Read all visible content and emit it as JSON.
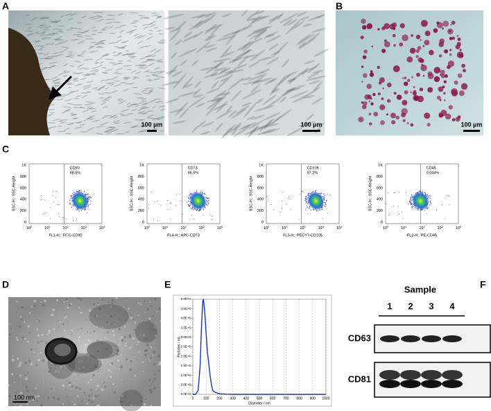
{
  "panels": {
    "A": {
      "label": "A",
      "scale_bars": [
        "100 µm",
        "100 µm"
      ]
    },
    "B": {
      "label": "B",
      "scale_bar": "100 µm"
    },
    "C": {
      "label": "C",
      "y_axis_label": "SSC-H:: SSC-Height",
      "y_ticks": [
        "1K",
        "800",
        "600",
        "400",
        "200",
        "0"
      ],
      "x_ticks": [
        {
          "base": "10",
          "exp": "0"
        },
        {
          "base": "10",
          "exp": "1"
        },
        {
          "base": "10",
          "exp": "2"
        },
        {
          "base": "10",
          "exp": "3"
        },
        {
          "base": "10",
          "exp": "4"
        }
      ],
      "plots": [
        {
          "marker": "CD90",
          "percent": "98.5%",
          "x_axis_label": "FL1-H:: FITC-CD90"
        },
        {
          "marker": "CD73",
          "percent": "96.5%",
          "x_axis_label": "FL4-H:: APC-CD73"
        },
        {
          "marker": "CD105",
          "percent": "97.2%",
          "x_axis_label": "FL3-H:: PECY7-CD105"
        },
        {
          "marker": "CD45",
          "percent": "0.044%",
          "x_axis_label": "FL2-H:: PE-CD45"
        }
      ]
    },
    "D": {
      "label": "D",
      "scale_bar": "100 nm"
    },
    "E": {
      "label": "E",
      "x_axis_label": "Diameter / nm",
      "y_axis_label": "Particles / mL",
      "xlim": [
        0,
        1000
      ],
      "ylim": [
        0,
        5000000
      ],
      "xticks": [
        0,
        100,
        200,
        300,
        400,
        500,
        600,
        700,
        800,
        900,
        1000
      ],
      "yticks": [
        {
          "value": 0,
          "label": "0.0E+0"
        },
        {
          "value": 500000,
          "label": "5.0E+5"
        },
        {
          "value": 1000000,
          "label": "1.0E+6"
        },
        {
          "value": 1500000,
          "label": "1.5E+6"
        },
        {
          "value": 2000000,
          "label": "2.0E+6"
        },
        {
          "value": 2500000,
          "label": "2.5E+6"
        },
        {
          "value": 3000000,
          "label": "3.0E+6"
        },
        {
          "value": 3500000,
          "label": "3.5E+6"
        },
        {
          "value": 4000000,
          "label": "4.0E+6"
        },
        {
          "value": 4500000,
          "label": "4.5E+6"
        },
        {
          "value": 5000000,
          "label": "5.0E+6"
        }
      ],
      "x": [
        0,
        20,
        40,
        55,
        65,
        75,
        80,
        90,
        100,
        110,
        120,
        130,
        140,
        150,
        170,
        200,
        250,
        300,
        1000
      ],
      "y": [
        0,
        0,
        200000,
        1500000,
        3500000,
        4900000,
        5000000,
        4300000,
        3200000,
        2200000,
        1600000,
        1000000,
        500000,
        200000,
        100000,
        30000,
        10000,
        0,
        0
      ]
    },
    "F": {
      "label": "F",
      "header": "Sample",
      "lanes": [
        "1",
        "2",
        "3",
        "4"
      ],
      "proteins": [
        "CD63",
        "CD81"
      ]
    }
  }
}
